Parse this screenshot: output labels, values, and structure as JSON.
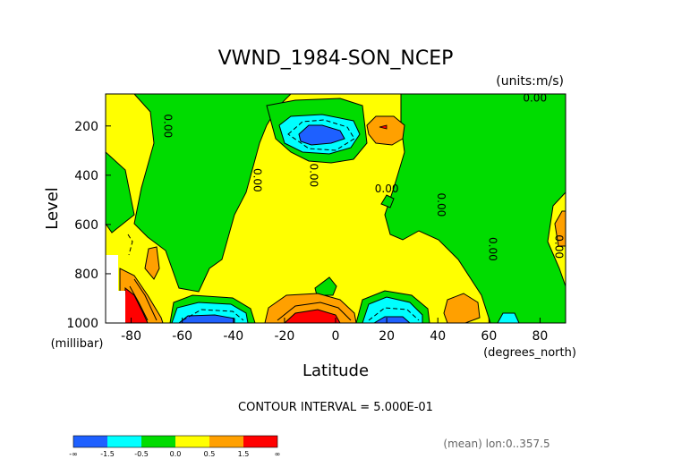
{
  "chart_data": {
    "type": "heatmap",
    "title": "VWND_1984-SON_NCEP",
    "units_label": "(units:m/s)",
    "xlabel": "Latitude",
    "ylabel": "Level",
    "x_units_label": "(degrees_north)",
    "y_units_label": "(millibar)",
    "xlim": [
      -90,
      90
    ],
    "ylim": [
      1000,
      70
    ],
    "x_ticks": [
      -80,
      -60,
      -40,
      -20,
      0,
      20,
      40,
      60,
      80
    ],
    "y_ticks": [
      200,
      400,
      600,
      800,
      1000
    ],
    "contour_interval_text": "CONTOUR INTERVAL = 5.000E-01",
    "footer_text": "(mean) lon:0..357.5",
    "contour_labels": [
      {
        "text": "0.00",
        "lat": -67,
        "level": 200
      },
      {
        "text": "0.00",
        "lat": -32,
        "level": 420
      },
      {
        "text": "0.00",
        "lat": -10,
        "level": 400
      },
      {
        "text": "0.00",
        "lat": 20,
        "level": 470
      },
      {
        "text": "0.00",
        "lat": 40,
        "level": 520
      },
      {
        "text": "0.00",
        "lat": 60,
        "level": 700
      },
      {
        "text": "0.00",
        "lat": 78,
        "level": 100
      },
      {
        "text": "0.00",
        "lat": 86,
        "level": 690
      }
    ],
    "colorbar": {
      "colors": [
        "#1e60ff",
        "#00ffff",
        "#00dc00",
        "#ffff00",
        "#ffa000",
        "#ff0000"
      ],
      "tick_labels": [
        "-∞",
        "-1.5",
        "-0.5",
        "0.0",
        "0.5",
        "1.5",
        "∞"
      ]
    }
  }
}
